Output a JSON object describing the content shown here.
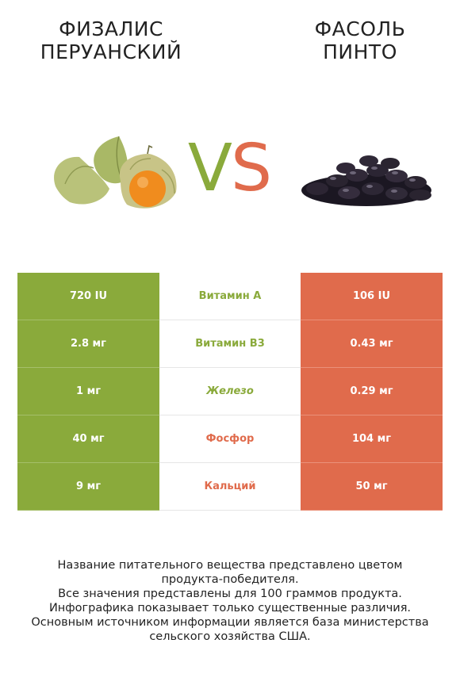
{
  "header": {
    "left_title": "ФИЗАЛИС\nПЕРУАНСКИЙ",
    "right_title": "ФАСОЛЬ\nПИНТО",
    "vs_v": "V",
    "vs_s": "S"
  },
  "colors": {
    "winner_left": "#8aaa3b",
    "winner_right": "#e06b4c",
    "text": "#222222"
  },
  "rows": [
    {
      "left": "720 IU",
      "name": "Витамин A",
      "right": "106 IU",
      "winner": "left"
    },
    {
      "left": "2.8 мг",
      "name": "Витамин B3",
      "right": "0.43 мг",
      "winner": "left"
    },
    {
      "left": "1 мг",
      "name": "Железо",
      "right": "0.29 мг",
      "winner": "left"
    },
    {
      "left": "40 мг",
      "name": "Фосфор",
      "right": "104 мг",
      "winner": "right"
    },
    {
      "left": "9 мг",
      "name": "Кальций",
      "right": "50 мг",
      "winner": "right"
    }
  ],
  "footer": {
    "line1": "Название питательного вещества представлено цветом",
    "line2": "продукта-победителя.",
    "line3": "Все значения представлены для 100 граммов продукта.",
    "line4": "Инфографика показывает только существенные различия.",
    "line5": "Основным источником информации является база министерства",
    "line6": "сельского хозяйства США."
  }
}
